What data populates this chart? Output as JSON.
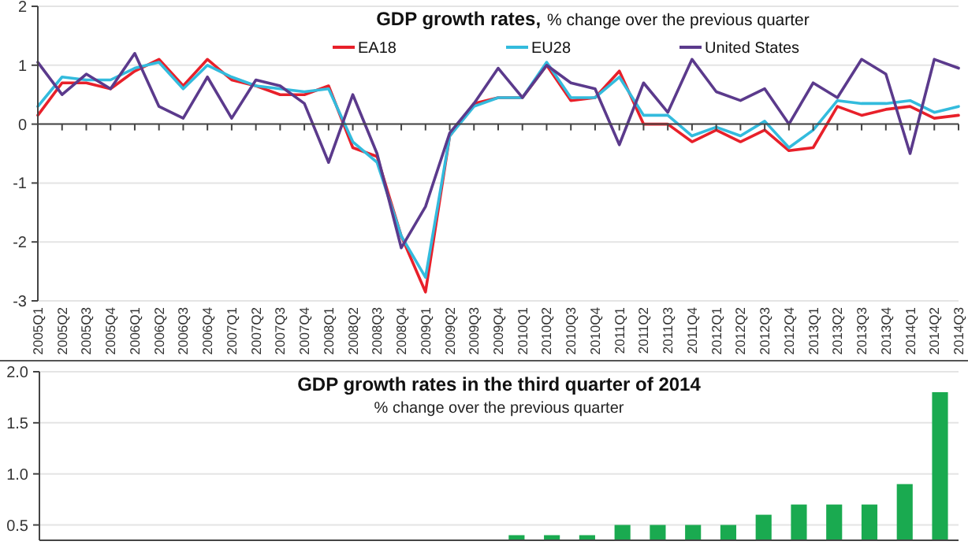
{
  "chart_data": [
    {
      "type": "line",
      "title": "GDP growth rates,",
      "subtitle": "% change over the previous quarter",
      "categories": [
        "2005Q1",
        "2005Q2",
        "2005Q3",
        "2005Q4",
        "2006Q1",
        "2006Q2",
        "2006Q3",
        "2006Q4",
        "2007Q1",
        "2007Q2",
        "2007Q3",
        "2007Q4",
        "2008Q1",
        "2008Q2",
        "2008Q3",
        "2008Q4",
        "2009Q1",
        "2009Q2",
        "2009Q3",
        "2009Q4",
        "2010Q1",
        "2010Q2",
        "2010Q3",
        "2010Q4",
        "2011Q1",
        "2011Q2",
        "2011Q3",
        "2011Q4",
        "2012Q1",
        "2012Q2",
        "2012Q3",
        "2012Q4",
        "2013Q1",
        "2013Q2",
        "2013Q3",
        "2013Q4",
        "2014Q1",
        "2014Q2",
        "2014Q3"
      ],
      "series": [
        {
          "name": "EA18",
          "color": "#e8202a",
          "values": [
            0.15,
            0.7,
            0.7,
            0.6,
            0.9,
            1.1,
            0.65,
            1.1,
            0.75,
            0.65,
            0.5,
            0.5,
            0.65,
            -0.4,
            -0.55,
            -1.9,
            -2.85,
            -0.2,
            0.35,
            0.45,
            0.45,
            1.0,
            0.4,
            0.45,
            0.9,
            0.0,
            0.0,
            -0.3,
            -0.1,
            -0.3,
            -0.1,
            -0.45,
            -0.4,
            0.3,
            0.15,
            0.25,
            0.3,
            0.1,
            0.15
          ]
        },
        {
          "name": "EU28",
          "color": "#33bbdd",
          "values": [
            0.3,
            0.8,
            0.75,
            0.75,
            0.95,
            1.05,
            0.6,
            1.0,
            0.8,
            0.65,
            0.6,
            0.55,
            0.6,
            -0.3,
            -0.65,
            -1.9,
            -2.6,
            -0.2,
            0.3,
            0.45,
            0.45,
            1.05,
            0.45,
            0.45,
            0.8,
            0.15,
            0.15,
            -0.2,
            -0.05,
            -0.2,
            0.05,
            -0.4,
            -0.1,
            0.4,
            0.35,
            0.35,
            0.4,
            0.2,
            0.3
          ]
        },
        {
          "name": "United States",
          "color": "#5b3a8c",
          "values": [
            1.05,
            0.5,
            0.85,
            0.6,
            1.2,
            0.3,
            0.1,
            0.8,
            0.1,
            0.75,
            0.65,
            0.35,
            -0.65,
            0.5,
            -0.5,
            -2.1,
            -1.4,
            -0.15,
            0.35,
            0.95,
            0.45,
            1.0,
            0.7,
            0.6,
            -0.35,
            0.7,
            0.2,
            1.1,
            0.55,
            0.4,
            0.6,
            0.0,
            0.7,
            0.45,
            1.1,
            0.85,
            -0.5,
            1.1,
            0.95
          ]
        }
      ],
      "ylim": [
        -3,
        2
      ],
      "yticks": [
        -3,
        -2,
        -1,
        0,
        1,
        2
      ],
      "grid": "y",
      "legend": "top",
      "marker": "none",
      "line_style": "solid"
    },
    {
      "type": "bar",
      "title": "GDP growth rates in the third quarter of 2014",
      "subtitle": "% change over the previous quarter",
      "categories": [
        null,
        null,
        null,
        null,
        null,
        null,
        null,
        null,
        null,
        null,
        null,
        null,
        null,
        null,
        null,
        null,
        null,
        null,
        null,
        null,
        null,
        null,
        null,
        null,
        null,
        null
      ],
      "values": [
        null,
        null,
        null,
        null,
        null,
        null,
        null,
        null,
        null,
        null,
        null,
        null,
        null,
        0.4,
        0.4,
        0.4,
        0.5,
        0.5,
        0.5,
        0.5,
        0.6,
        0.7,
        0.7,
        0.7,
        0.9,
        1.8
      ],
      "color": "#1aaa50",
      "ylim": [
        0.35,
        2.0
      ],
      "yticks": [
        {
          "value": 0.5,
          "label": "0.5"
        },
        {
          "value": 1,
          "label": "1.0"
        },
        {
          "value": 1.5,
          "label": "1.5"
        },
        {
          "value": 2,
          "label": "2.0"
        }
      ],
      "grid": "y"
    }
  ]
}
